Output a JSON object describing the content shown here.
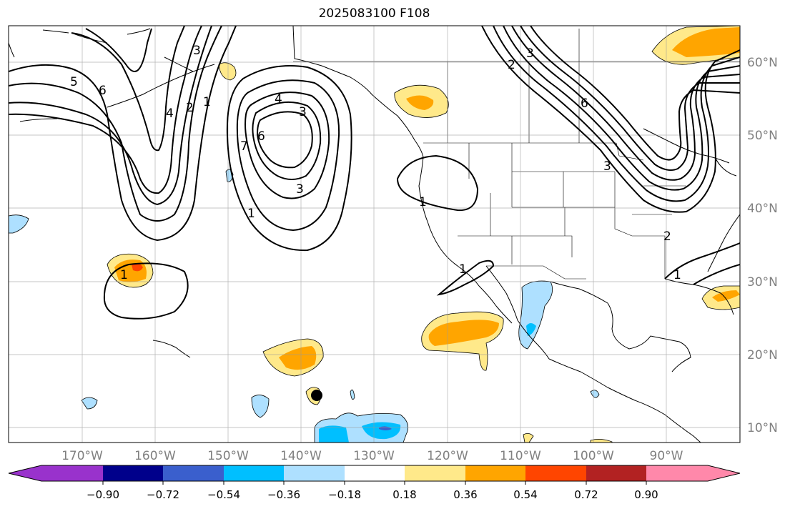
{
  "title": "2025083100 F108",
  "map": {
    "lon_ticks": [
      "170°W",
      "160°W",
      "150°W",
      "140°W",
      "130°W",
      "120°W",
      "110°W",
      "100°W",
      "90°W"
    ],
    "lat_ticks": [
      "60°N",
      "50°N",
      "40°N",
      "30°N",
      "20°N",
      "10°N"
    ],
    "contour_labels": [
      "5",
      "6",
      "3",
      "4",
      "2",
      "1",
      "4",
      "3",
      "6",
      "7",
      "1",
      "3",
      "1",
      "1",
      "1",
      "2",
      "3",
      "6",
      "2",
      "1",
      "3"
    ],
    "shading_colors": {
      "light_yellow": "#ffe98a",
      "orange": "#ffa500",
      "red_orange": "#ff4500",
      "light_blue": "#aee0ff",
      "deep_sky_blue": "#00bfff",
      "royal_blue": "#3a5fcd"
    }
  },
  "colorbar": {
    "tick_labels": [
      "−0.90",
      "−0.72",
      "−0.54",
      "−0.36",
      "−0.18",
      "0.18",
      "0.36",
      "0.54",
      "0.72",
      "0.90"
    ],
    "colors": [
      "#9932cc",
      "#00008b",
      "#3a5fcd",
      "#00bfff",
      "#aee0ff",
      "#ffffff",
      "#ffe98a",
      "#ffa500",
      "#ff4500",
      "#b22222",
      "#ff88aa"
    ]
  }
}
